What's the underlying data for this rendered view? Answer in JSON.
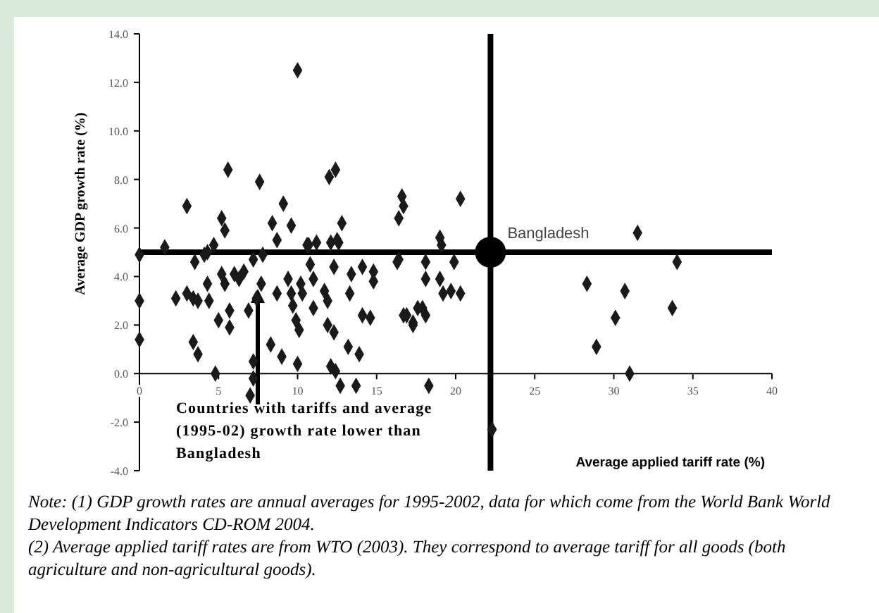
{
  "chart_data": {
    "type": "scatter",
    "xlabel": "Average applied tariff rate (%)",
    "ylabel": "Average GDP growth rate (%)",
    "xlim": [
      0,
      40
    ],
    "ylim": [
      -4,
      14
    ],
    "xticks": [
      0,
      5,
      10,
      15,
      20,
      25,
      30,
      35,
      40
    ],
    "yticks": [
      {
        "value": -4,
        "label": "-4.0"
      },
      {
        "value": -2,
        "label": "-2.0"
      },
      {
        "value": 0,
        "label": "0.0"
      },
      {
        "value": 2,
        "label": "2.0"
      },
      {
        "value": 4,
        "label": "4.0"
      },
      {
        "value": 6,
        "label": "6.0"
      },
      {
        "value": 8,
        "label": "8.0"
      },
      {
        "value": 10,
        "label": "10.0"
      },
      {
        "value": 12,
        "label": "12.0"
      },
      {
        "value": 14,
        "label": "14.0"
      }
    ],
    "grid": false,
    "series": [
      {
        "color": "#1a1a1a",
        "marker": "diamond",
        "x": [
          1.6,
          3.0,
          4.3,
          4.7,
          5.2,
          5.4,
          5.6,
          7.6,
          8.4,
          8.7,
          9.1,
          9.6,
          10.0,
          10.7,
          11.2,
          12.0,
          12.4,
          12.1,
          12.5,
          12.8,
          16.4,
          16.6,
          16.7,
          0,
          3.5,
          4.1,
          0,
          0,
          2.3,
          3.0,
          3.4,
          3.7,
          4.3,
          4.4,
          3.4,
          3.7,
          4.8,
          5.0,
          5.2,
          5.4,
          5.7,
          5.7,
          6.0,
          6.3,
          6.6,
          6.9,
          7.2,
          7.7,
          7.8,
          7.4,
          7.2,
          7.0,
          7.2,
          8.3,
          9.0,
          8.7,
          9.4,
          9.6,
          9.7,
          9.9,
          10.1,
          10.0,
          10.2,
          10.3,
          10.6,
          10.8,
          11.0,
          11.0,
          11.7,
          11.9,
          11.9,
          12.3,
          12.1,
          12.4,
          12.3,
          12.6,
          12.7,
          13.7,
          13.2,
          13.9,
          13.4,
          13.3,
          14.1,
          14.8,
          14.8,
          14.1,
          14.6,
          16.4,
          16.9,
          17.3,
          17.6,
          20.3,
          19.0,
          19.1,
          16.3,
          18.1,
          19.9,
          18.1,
          19.0,
          19.2,
          19.7,
          20.3,
          16.7,
          17.3,
          17.9,
          18.1,
          18.3,
          22.3,
          28.3,
          28.9,
          30.1,
          30.7,
          31.0,
          31.5,
          33.7,
          34.0
        ],
        "values": [
          5.2,
          6.9,
          5.0,
          5.3,
          6.4,
          5.9,
          8.4,
          7.9,
          6.2,
          5.5,
          7.0,
          6.1,
          12.5,
          5.3,
          5.4,
          8.1,
          8.4,
          5.4,
          5.5,
          6.2,
          6.4,
          7.3,
          6.9,
          4.9,
          4.6,
          4.9,
          3.0,
          1.4,
          3.1,
          3.3,
          3.1,
          3.0,
          3.7,
          3.0,
          1.3,
          0.8,
          0.0,
          2.2,
          4.1,
          3.7,
          2.6,
          1.9,
          4.1,
          3.9,
          4.2,
          2.6,
          4.7,
          3.7,
          4.9,
          3.1,
          0.5,
          -0.9,
          -0.2,
          1.2,
          0.7,
          3.3,
          3.9,
          3.3,
          2.8,
          2.2,
          1.8,
          0.4,
          3.7,
          3.3,
          5.3,
          4.5,
          3.9,
          2.7,
          3.4,
          3.0,
          2.0,
          1.7,
          0.3,
          0.1,
          4.4,
          5.4,
          -0.5,
          -0.5,
          1.1,
          0.8,
          4.1,
          3.3,
          4.4,
          4.2,
          3.8,
          2.4,
          2.3,
          4.7,
          2.4,
          2.1,
          2.7,
          7.2,
          5.6,
          5.3,
          4.6,
          4.6,
          4.6,
          3.9,
          3.9,
          3.3,
          3.4,
          3.3,
          2.4,
          2.0,
          2.7,
          2.4,
          -0.5,
          -2.3,
          3.7,
          1.1,
          2.3,
          3.4,
          0.0,
          5.8,
          2.7,
          4.6
        ]
      },
      {
        "name": "Bangladesh",
        "color": "#000000",
        "marker": "circle",
        "x": [
          22.2
        ],
        "values": [
          5.0
        ]
      }
    ],
    "ref_lines": [
      {
        "axis": "x",
        "value": 22.2,
        "color": "#000000"
      },
      {
        "axis": "y",
        "value": 5.0,
        "color": "#000000"
      }
    ],
    "annotations": [
      "Countries with tariffs and average (1995-02) growth rate lower than Bangladesh",
      "Note: (1) GDP growth rates are annual averages for 1995-2002, data for which come from the World Bank World Development Indicators CD-ROM 2004.",
      "(2) Average applied tariff rates are from WTO (2003). They correspond to average tariff for all goods (both agriculture and non-agricultural goods)."
    ]
  }
}
